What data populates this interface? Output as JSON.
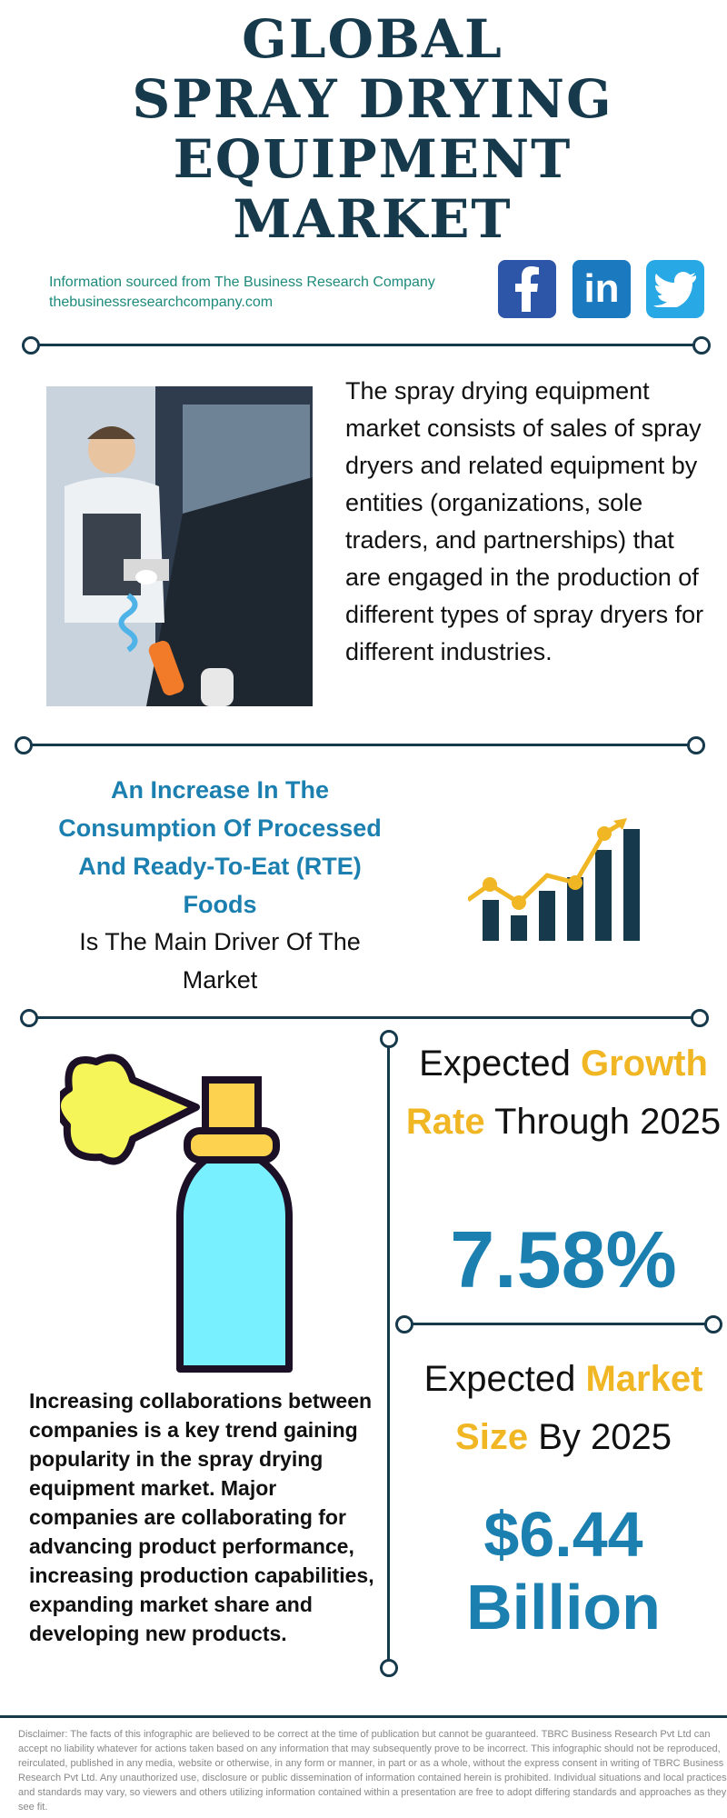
{
  "title": {
    "line1": "GLOBAL",
    "line2": "SPRAY DRYING",
    "line3": "EQUIPMENT",
    "line4": "MARKET"
  },
  "source": {
    "line1": "Information sourced from The Business Research Company",
    "line2": "thebusinessresearchcompany.com"
  },
  "social": {
    "facebook_icon": "facebook-icon",
    "linkedin_icon": "linkedin-icon",
    "twitter_icon": "twitter-icon",
    "linkedin_text": "in"
  },
  "intro": "The spray drying equipment market consists of sales of spray dryers and related equipment by entities (organizations, sole traders, and partnerships) that are engaged in the production of different types of spray dryers for different industries.",
  "driver": {
    "headline": "An Increase In The Consumption Of Processed And Ready-To-Eat (RTE) Foods",
    "tail": "Is The Main Driver Of The Market"
  },
  "growth": {
    "label_part1": "Expected ",
    "label_accent": "Growth Rate",
    "label_part2": " Through 2025",
    "value": "7.58%"
  },
  "market_size": {
    "label_part1": "Expected ",
    "label_accent": "Market Size",
    "label_part2": " By 2025",
    "value_line1": "$6.44",
    "value_line2": "Billion"
  },
  "trend": "Increasing collaborations between companies is a key trend gaining popularity in the spray drying equipment market. Major companies are collaborating for advancing product performance, increasing production capabilities, expanding market share and developing new products.",
  "disclaimer": "Disclaimer: The facts of this infographic are believed to be correct at the time of publication but cannot be guaranteed. TBRC Business Research Pvt Ltd can accept no liability whatever for actions taken based on any information that may subsequently prove to be incorrect. This infographic should not be reproduced, reirculated, published in any media, website or otherwise, in any form or manner, in part or as a whole, without the express consent in writing of TBRC Business Research Pvt Ltd. Any unauthorized use, disclosure or public dissemination of information contained herein is prohibited. Individual situations and local practices and standards may vary, so viewers and others utilizing information contained within a presentation are free to adopt differing standards and approaches as they see fit.",
  "colors": {
    "navy": "#163a4b",
    "blue": "#1b7fb0",
    "gold": "#f0b624",
    "teal": "#1d8a7b"
  }
}
